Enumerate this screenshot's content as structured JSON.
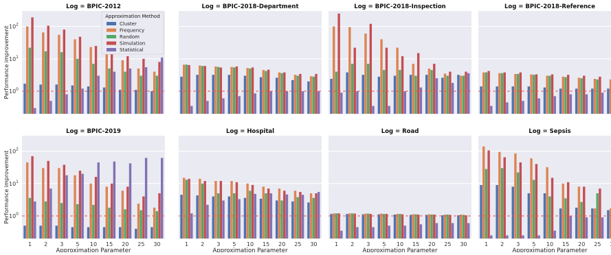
{
  "figure": {
    "ylabel": "Performance improvement",
    "xlabel": "Approximation Parameter",
    "legend_title": "Approximation Method",
    "legend_placement": "inside top-right of first panel"
  },
  "colors": {
    "Cluster": "#4c72b0",
    "Frequency": "#dd8452",
    "Random": "#55a868",
    "Simulation": "#c44e52",
    "Statistical": "#8172b3",
    "refline": "#e0574f",
    "panel_bg": "#eaeaf2",
    "grid": "#ffffff"
  },
  "chart_data": [
    {
      "type": "bar",
      "title": "Log = BPIC-2012",
      "yscale": "log",
      "ylim": [
        0.2,
        300
      ],
      "grid": true,
      "reference_line": 1,
      "categories": [
        "1",
        "2",
        "3",
        "5",
        "10",
        "15",
        "20",
        "25",
        "30"
      ],
      "series": [
        {
          "name": "Cluster",
          "values": [
            1.7,
            1.6,
            1.6,
            1.5,
            1.4,
            1.3,
            1.1,
            1.1,
            1.0
          ]
        },
        {
          "name": "Frequency",
          "values": [
            100,
            65,
            55,
            40,
            23,
            15,
            9,
            5,
            4
          ]
        },
        {
          "name": "Random",
          "values": [
            22,
            17,
            16,
            10,
            7,
            5,
            4,
            3,
            3
          ]
        },
        {
          "name": "Simulation",
          "values": [
            190,
            105,
            80,
            48,
            25,
            18,
            12,
            10,
            8
          ]
        },
        {
          "name": "Statistical",
          "values": [
            0.3,
            0.5,
            0.8,
            1.2,
            3,
            4,
            5,
            5.5,
            11
          ]
        }
      ]
    },
    {
      "type": "bar",
      "title": "Log = BPIC-2018-Department",
      "yscale": "log",
      "ylim": [
        0.2,
        300
      ],
      "grid": true,
      "reference_line": 1,
      "categories": [
        "1",
        "2",
        "3",
        "5",
        "10",
        "15",
        "20",
        "25",
        "30"
      ],
      "series": [
        {
          "name": "Cluster",
          "values": [
            2.8,
            3.2,
            3.2,
            3.2,
            3.0,
            2.7,
            2.6,
            2.2,
            2.0
          ]
        },
        {
          "name": "Frequency",
          "values": [
            6.6,
            6.2,
            5.8,
            5.6,
            5.2,
            4.5,
            3.8,
            3.2,
            2.9
          ]
        },
        {
          "name": "Random",
          "values": [
            6.6,
            6.0,
            5.6,
            5.4,
            5.0,
            4.2,
            3.6,
            3.0,
            2.8
          ]
        },
        {
          "name": "Simulation",
          "values": [
            6.4,
            6.0,
            5.4,
            5.8,
            5.4,
            4.6,
            3.8,
            3.4,
            3.4
          ]
        },
        {
          "name": "Statistical",
          "values": [
            0.35,
            0.5,
            0.6,
            0.7,
            0.85,
            1.0,
            1.0,
            1.0,
            1.0
          ]
        }
      ]
    },
    {
      "type": "bar",
      "title": "Log = BPIC-2018-Inspection",
      "yscale": "log",
      "ylim": [
        0.2,
        300
      ],
      "grid": true,
      "reference_line": 1,
      "categories": [
        "1",
        "2",
        "3",
        "5",
        "10",
        "15",
        "20",
        "25",
        "30"
      ],
      "series": [
        {
          "name": "Cluster",
          "values": [
            2.4,
            3.8,
            3.2,
            2.8,
            3.0,
            3.2,
            3.2,
            2.6,
            3.2
          ]
        },
        {
          "name": "Frequency",
          "values": [
            100,
            95,
            60,
            40,
            22,
            7,
            5,
            3.5,
            3
          ]
        },
        {
          "name": "Random",
          "values": [
            4,
            7,
            7,
            4.5,
            4.5,
            3,
            4.5,
            3,
            3
          ]
        },
        {
          "name": "Simulation",
          "values": [
            250,
            22,
            120,
            22,
            12,
            15,
            7,
            4,
            4
          ]
        },
        {
          "name": "Statistical",
          "values": [
            0.9,
            1.0,
            0.35,
            0.35,
            1.0,
            1.3,
            2.5,
            1.8,
            3.6
          ]
        }
      ]
    },
    {
      "type": "bar",
      "title": "Log = BPIC-2018-Reference",
      "yscale": "log",
      "ylim": [
        0.2,
        300
      ],
      "grid": true,
      "reference_line": 1,
      "categories": [
        "1",
        "2",
        "3",
        "5",
        "10",
        "15",
        "20",
        "25",
        "30"
      ],
      "series": [
        {
          "name": "Cluster",
          "values": [
            1.4,
            1.4,
            1.4,
            1.4,
            1.3,
            1.2,
            1.2,
            1.2,
            1.2
          ]
        },
        {
          "name": "Frequency",
          "values": [
            3.8,
            3.6,
            3.4,
            3.3,
            3.0,
            2.8,
            2.6,
            2.4,
            2.3
          ]
        },
        {
          "name": "Random",
          "values": [
            3.8,
            3.6,
            3.4,
            3.2,
            3.0,
            2.7,
            2.5,
            2.3,
            2.2
          ]
        },
        {
          "name": "Simulation",
          "values": [
            4.2,
            3.8,
            3.8,
            3.3,
            3.3,
            3.2,
            3.0,
            2.8,
            2.8
          ]
        },
        {
          "name": "Statistical",
          "values": [
            0.35,
            0.45,
            0.5,
            0.6,
            0.7,
            0.8,
            0.8,
            0.9,
            0.9
          ]
        }
      ]
    },
    {
      "type": "bar",
      "title": "Log = BPIC-2019",
      "yscale": "log",
      "ylim": [
        0.2,
        300
      ],
      "grid": true,
      "reference_line": 1,
      "categories": [
        "1",
        "2",
        "3",
        "5",
        "10",
        "15",
        "20",
        "25",
        "30"
      ],
      "series": [
        {
          "name": "Cluster",
          "values": [
            0.5,
            0.5,
            0.5,
            0.45,
            0.45,
            0.45,
            0.45,
            0.4,
            0.45
          ]
        },
        {
          "name": "Frequency",
          "values": [
            45,
            30,
            30,
            18,
            10,
            8,
            6,
            2.4,
            1.8
          ]
        },
        {
          "name": "Random",
          "values": [
            3.6,
            2.8,
            2.5,
            2.3,
            2.2,
            1.8,
            1.6,
            1.5,
            1.4
          ]
        },
        {
          "name": "Simulation",
          "values": [
            70,
            50,
            38,
            25,
            16,
            10,
            8,
            4,
            5
          ]
        },
        {
          "name": "Statistical",
          "values": [
            2.8,
            7,
            18,
            20,
            45,
            48,
            42,
            62,
            62
          ]
        }
      ]
    },
    {
      "type": "bar",
      "title": "Log = Hospital",
      "yscale": "log",
      "ylim": [
        0.2,
        300
      ],
      "grid": true,
      "reference_line": 1,
      "categories": [
        "1",
        "2",
        "3",
        "5",
        "10",
        "15",
        "20",
        "25",
        "30"
      ],
      "series": [
        {
          "name": "Cluster",
          "values": [
            4.5,
            4.3,
            4.0,
            4.0,
            3.6,
            3.4,
            3.0,
            2.8,
            2.6
          ]
        },
        {
          "name": "Frequency",
          "values": [
            15,
            14,
            12,
            12,
            10,
            8,
            7,
            6,
            5
          ]
        },
        {
          "name": "Random",
          "values": [
            13,
            10,
            5,
            5,
            6,
            5,
            3,
            3.8,
            3.6
          ]
        },
        {
          "name": "Simulation",
          "values": [
            14,
            12,
            12,
            11,
            9,
            7,
            6,
            5.5,
            5.0
          ]
        },
        {
          "name": "Statistical",
          "values": [
            1.2,
            2.2,
            3,
            3.3,
            4.8,
            5,
            4.6,
            4.5,
            5.5
          ]
        }
      ]
    },
    {
      "type": "bar",
      "title": "Log = Road",
      "yscale": "log",
      "ylim": [
        0.2,
        300
      ],
      "grid": true,
      "reference_line": 1,
      "categories": [
        "1",
        "2",
        "3",
        "5",
        "10",
        "15",
        "20",
        "25",
        "30"
      ],
      "series": [
        {
          "name": "Cluster",
          "values": [
            1.15,
            1.15,
            1.12,
            1.12,
            1.1,
            1.08,
            1.08,
            1.05,
            1.05
          ]
        },
        {
          "name": "Frequency",
          "values": [
            1.2,
            1.2,
            1.18,
            1.18,
            1.15,
            1.12,
            1.12,
            1.1,
            1.1
          ]
        },
        {
          "name": "Random",
          "values": [
            1.2,
            1.2,
            1.18,
            1.15,
            1.15,
            1.12,
            1.1,
            1.1,
            1.08
          ]
        },
        {
          "name": "Simulation",
          "values": [
            1.2,
            1.18,
            1.15,
            1.15,
            1.12,
            1.1,
            1.1,
            1.08,
            1.05
          ]
        },
        {
          "name": "Statistical",
          "values": [
            0.35,
            0.45,
            0.45,
            0.5,
            0.5,
            0.55,
            0.6,
            0.6,
            0.6
          ]
        }
      ]
    },
    {
      "type": "bar",
      "title": "Log = Sepsis",
      "yscale": "log",
      "ylim": [
        0.2,
        300
      ],
      "grid": true,
      "reference_line": 1,
      "categories": [
        "1",
        "2",
        "3",
        "5",
        "10",
        "15",
        "20",
        "25",
        "30"
      ],
      "series": [
        {
          "name": "Cluster",
          "values": [
            9,
            9,
            8,
            5,
            5,
            1.7,
            1.8,
            1.7,
            1.5
          ]
        },
        {
          "name": "Frequency",
          "values": [
            140,
            95,
            85,
            60,
            32,
            10,
            8,
            1.7,
            1.7
          ]
        },
        {
          "name": "Random",
          "values": [
            28,
            30,
            22,
            13,
            4,
            3.5,
            2.7,
            5,
            4
          ]
        },
        {
          "name": "Simulation",
          "values": [
            105,
            65,
            45,
            40,
            15,
            11,
            8,
            7,
            5.5
          ]
        },
        {
          "name": "Statistical",
          "values": [
            0.25,
            0.25,
            0.25,
            0.25,
            0.35,
            1.0,
            0.9,
            0.9,
            1.0
          ]
        }
      ]
    }
  ]
}
